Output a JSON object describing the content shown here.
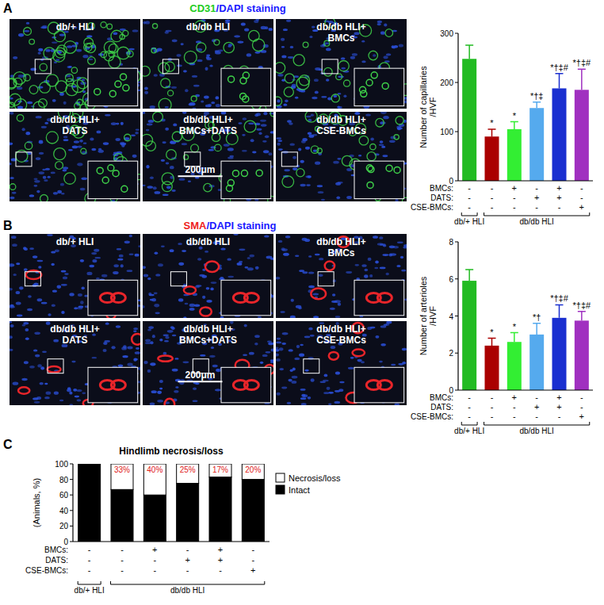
{
  "panels": [
    {
      "label": "A",
      "title": {
        "parts": [
          {
            "text": "CD31",
            "color": "#22cc22"
          },
          {
            "text": "/DAPI staining",
            "color": "#1a1aff"
          }
        ]
      },
      "images": [
        [
          "db/+ HLI"
        ],
        [
          "db/db HLI"
        ],
        [
          "db/db HLI+",
          "BMCs"
        ],
        [
          "db/db HLI+",
          "DATS"
        ],
        [
          "db/db HLI+",
          "BMCs+DATS"
        ],
        [
          "db/db HLI+",
          "CSE-BMCs"
        ]
      ],
      "stain": "CD31",
      "scale_bar": "200μm"
    },
    {
      "label": "B",
      "title": {
        "parts": [
          {
            "text": "SMA",
            "color": "#ee2222"
          },
          {
            "text": "/DAPI staining",
            "color": "#1a1aff"
          }
        ]
      },
      "images": [
        [
          "db/+ HLI"
        ],
        [
          "db/db HLI"
        ],
        [
          "db/db HLI+",
          "BMCs"
        ],
        [
          "db/db HLI+",
          "DATS"
        ],
        [
          "db/db HLI+",
          "BMCs+DATS"
        ],
        [
          "db/db HLI+",
          "CSE-BMCs"
        ]
      ],
      "stain": "SMA",
      "scale_bar": "200μm"
    },
    {
      "label": "C"
    }
  ],
  "chart_data": [
    {
      "type": "bar",
      "y_label": [
        "Number of capillaries",
        "/HVF"
      ],
      "categories": [
        null,
        null,
        null,
        null,
        null,
        null
      ],
      "values": [
        248,
        90,
        105,
        148,
        188,
        185
      ],
      "errors": [
        28,
        15,
        15,
        12,
        30,
        42
      ],
      "colors": [
        "#22bb22",
        "#aa0000",
        "#33ee33",
        "#55aaee",
        "#1a2fd0",
        "#a030c0"
      ],
      "significance": [
        null,
        "*",
        "*",
        "*†‡",
        "*†‡#",
        "*†‡#"
      ],
      "ylim": [
        0,
        300
      ],
      "yticks": [
        0,
        100,
        200,
        300
      ],
      "treatments": [
        {
          "label": "BMCs:",
          "values": [
            "-",
            "-",
            "+",
            "-",
            "+",
            "-"
          ]
        },
        {
          "label": "DATS:",
          "values": [
            "-",
            "-",
            "-",
            "+",
            "+",
            "-"
          ]
        },
        {
          "label": "CSE-BMCs:",
          "values": [
            "-",
            "-",
            "-",
            "-",
            "-",
            "+"
          ]
        }
      ],
      "groups": [
        {
          "label": "db/+ HLI",
          "count": 1
        },
        {
          "label": "db/db HLI",
          "count": 5
        }
      ]
    },
    {
      "type": "bar",
      "y_label": [
        "Number of arterioles",
        "/HVF"
      ],
      "categories": [
        null,
        null,
        null,
        null,
        null,
        null
      ],
      "values": [
        5.9,
        2.4,
        2.6,
        3.0,
        3.9,
        3.75
      ],
      "errors": [
        0.6,
        0.4,
        0.5,
        0.6,
        0.7,
        0.5
      ],
      "colors": [
        "#22bb22",
        "#aa0000",
        "#33ee33",
        "#55aaee",
        "#1a2fd0",
        "#a030c0"
      ],
      "significance": [
        null,
        "*",
        "*",
        "*†",
        "*†‡#",
        "*†‡#"
      ],
      "ylim": [
        0,
        8
      ],
      "yticks": [
        0,
        2,
        4,
        6,
        8
      ],
      "treatments": [
        {
          "label": "BMCs:",
          "values": [
            "-",
            "-",
            "+",
            "-",
            "+",
            "-"
          ]
        },
        {
          "label": "DATS:",
          "values": [
            "-",
            "-",
            "-",
            "+",
            "+",
            "-"
          ]
        },
        {
          "label": "CSE-BMCs:",
          "values": [
            "-",
            "-",
            "-",
            "-",
            "-",
            "+"
          ]
        }
      ],
      "groups": [
        {
          "label": "db/+ HLI",
          "count": 1
        },
        {
          "label": "db/db HLI",
          "count": 5
        }
      ]
    },
    {
      "type": "bar",
      "stacked": true,
      "title": "Hindlimb necrosis/loss",
      "y_label": [
        "(Animals, %)"
      ],
      "categories": [
        null,
        null,
        null,
        null,
        null,
        null
      ],
      "series": [
        {
          "name": "Intact",
          "color": "#000000",
          "values": [
            100,
            67,
            60,
            75,
            83,
            80
          ]
        },
        {
          "name": "Necrosis/loss",
          "color": "#ffffff",
          "values": [
            0,
            33,
            40,
            25,
            17,
            20
          ],
          "value_labels": [
            null,
            "33%",
            "40%",
            "25%",
            "17%",
            "20%"
          ]
        }
      ],
      "data_labels": true,
      "legend": "right",
      "ylim": [
        0,
        100
      ],
      "yticks": [
        0,
        20,
        40,
        60,
        80,
        100
      ],
      "treatments": [
        {
          "label": "BMCs:",
          "values": [
            "-",
            "-",
            "+",
            "-",
            "+",
            "-"
          ]
        },
        {
          "label": "DATS:",
          "values": [
            "-",
            "-",
            "-",
            "+",
            "+",
            "-"
          ]
        },
        {
          "label": "CSE-BMCs:",
          "values": [
            "-",
            "-",
            "-",
            "-",
            "-",
            "+"
          ]
        }
      ],
      "groups": [
        {
          "label": "db/+ HLI",
          "count": 1
        },
        {
          "label": "db/db HLI",
          "count": 5
        }
      ]
    }
  ]
}
